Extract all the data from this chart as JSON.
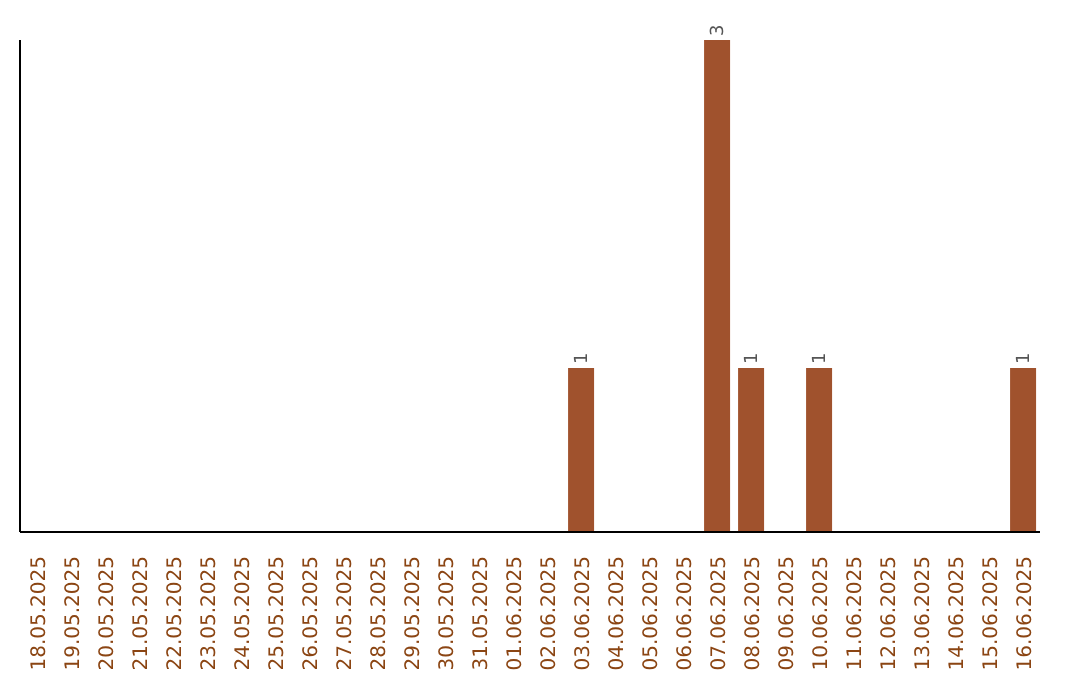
{
  "chart_data": {
    "type": "bar",
    "categories": [
      "18.05.2025",
      "19.05.2025",
      "20.05.2025",
      "21.05.2025",
      "22.05.2025",
      "23.05.2025",
      "24.05.2025",
      "25.05.2025",
      "26.05.2025",
      "27.05.2025",
      "28.05.2025",
      "29.05.2025",
      "30.05.2025",
      "31.05.2025",
      "01.06.2025",
      "02.06.2025",
      "03.06.2025",
      "04.06.2025",
      "05.06.2025",
      "06.06.2025",
      "07.06.2025",
      "08.06.2025",
      "09.06.2025",
      "10.06.2025",
      "11.06.2025",
      "12.06.2025",
      "13.06.2025",
      "14.06.2025",
      "15.06.2025",
      "16.06.2025"
    ],
    "values": [
      null,
      null,
      null,
      null,
      null,
      null,
      null,
      null,
      null,
      null,
      null,
      null,
      null,
      null,
      null,
      null,
      1,
      null,
      null,
      null,
      3,
      1,
      null,
      1,
      null,
      null,
      null,
      null,
      null,
      1
    ],
    "data_labels": true,
    "color": "#a0522d",
    "grid": false,
    "legend": false
  }
}
